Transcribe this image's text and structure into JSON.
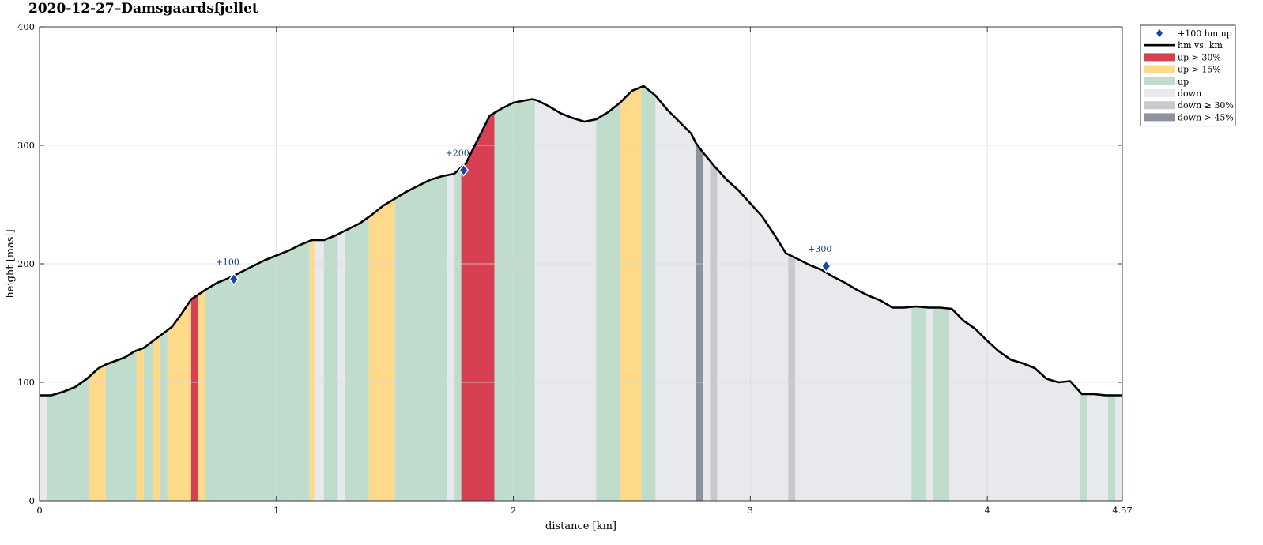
{
  "title": "2020-12-27–Damsgaardsfjellet",
  "chart_data": {
    "type": "area",
    "title": "2020-12-27–Damsgaardsfjellet",
    "xlabel": "distance [km]",
    "ylabel": "height [masl]",
    "xlim": [
      0,
      4.57
    ],
    "ylim": [
      0,
      400
    ],
    "xticks": [
      "0",
      "1",
      "2",
      "3",
      "4",
      "4.57"
    ],
    "xtick_values": [
      0,
      1,
      2,
      3,
      4,
      4.57
    ],
    "yticks": [
      "0",
      "100",
      "200",
      "300",
      "400"
    ],
    "ytick_values": [
      0,
      100,
      200,
      300,
      400
    ],
    "grid": true,
    "legend_position": "outside-right-top",
    "legend": [
      {
        "label": "+100 hm up",
        "kind": "marker",
        "color": "#1548a6"
      },
      {
        "label": "hm vs. km",
        "kind": "line",
        "color": "#000000"
      },
      {
        "label": "up > 30%",
        "kind": "patch",
        "color": "#d73f52"
      },
      {
        "label": "up > 15%",
        "kind": "patch",
        "color": "#fdd98a"
      },
      {
        "label": "up",
        "kind": "patch",
        "color": "#c0dccd"
      },
      {
        "label": "down",
        "kind": "patch",
        "color": "#e8e9ed"
      },
      {
        "label": "down ≥ 30%",
        "kind": "patch",
        "color": "#c7c9cf"
      },
      {
        "label": "down > 45%",
        "kind": "patch",
        "color": "#8c939e"
      }
    ],
    "profile": {
      "x": [
        0,
        0.05,
        0.1,
        0.15,
        0.2,
        0.25,
        0.28,
        0.32,
        0.36,
        0.4,
        0.44,
        0.48,
        0.52,
        0.56,
        0.6,
        0.64,
        0.67,
        0.7,
        0.75,
        0.8,
        0.85,
        0.9,
        0.95,
        1.0,
        1.05,
        1.1,
        1.15,
        1.2,
        1.25,
        1.3,
        1.35,
        1.4,
        1.45,
        1.5,
        1.55,
        1.6,
        1.65,
        1.7,
        1.75,
        1.8,
        1.85,
        1.9,
        1.95,
        2.0,
        2.05,
        2.08,
        2.1,
        2.15,
        2.2,
        2.25,
        2.3,
        2.35,
        2.4,
        2.45,
        2.5,
        2.55,
        2.6,
        2.65,
        2.7,
        2.75,
        2.77,
        2.8,
        2.85,
        2.9,
        2.95,
        3.0,
        3.05,
        3.1,
        3.15,
        3.2,
        3.25,
        3.3,
        3.35,
        3.4,
        3.45,
        3.5,
        3.55,
        3.6,
        3.65,
        3.7,
        3.75,
        3.8,
        3.85,
        3.9,
        3.95,
        4.0,
        4.05,
        4.1,
        4.15,
        4.2,
        4.25,
        4.3,
        4.35,
        4.4,
        4.45,
        4.5,
        4.57
      ],
      "y": [
        89,
        89,
        92,
        96,
        103,
        112,
        115,
        118,
        121,
        126,
        129,
        135,
        141,
        147,
        158,
        170,
        174,
        178,
        184,
        188,
        193,
        198,
        203,
        207,
        211,
        216,
        220,
        220,
        224,
        229,
        234,
        241,
        249,
        255,
        261,
        266,
        271,
        274,
        276,
        285,
        305,
        325,
        331,
        336,
        338,
        339,
        338,
        333,
        327,
        323,
        320,
        322,
        328,
        336,
        346,
        350,
        342,
        330,
        320,
        310,
        302,
        294,
        282,
        271,
        262,
        251,
        240,
        225,
        209,
        204,
        199,
        195,
        189,
        184,
        178,
        173,
        169,
        163,
        163,
        164,
        163,
        163,
        162,
        152,
        145,
        135,
        126,
        119,
        116,
        112,
        103,
        100,
        101,
        90,
        90,
        89,
        89
      ]
    },
    "segments": [
      {
        "x0": 0.0,
        "x1": 0.03,
        "class": "down"
      },
      {
        "x0": 0.03,
        "x1": 0.21,
        "class": "up"
      },
      {
        "x0": 0.21,
        "x1": 0.28,
        "class": "up > 15%"
      },
      {
        "x0": 0.28,
        "x1": 0.41,
        "class": "up"
      },
      {
        "x0": 0.41,
        "x1": 0.44,
        "class": "up > 15%"
      },
      {
        "x0": 0.44,
        "x1": 0.48,
        "class": "up"
      },
      {
        "x0": 0.48,
        "x1": 0.51,
        "class": "up > 15%"
      },
      {
        "x0": 0.51,
        "x1": 0.54,
        "class": "up"
      },
      {
        "x0": 0.54,
        "x1": 0.64,
        "class": "up > 15%"
      },
      {
        "x0": 0.64,
        "x1": 0.67,
        "class": "up > 30%"
      },
      {
        "x0": 0.67,
        "x1": 0.7,
        "class": "up > 15%"
      },
      {
        "x0": 0.7,
        "x1": 1.14,
        "class": "up"
      },
      {
        "x0": 1.14,
        "x1": 1.16,
        "class": "up > 15%"
      },
      {
        "x0": 1.16,
        "x1": 1.2,
        "class": "down"
      },
      {
        "x0": 1.2,
        "x1": 1.26,
        "class": "up"
      },
      {
        "x0": 1.26,
        "x1": 1.29,
        "class": "down"
      },
      {
        "x0": 1.29,
        "x1": 1.39,
        "class": "up"
      },
      {
        "x0": 1.39,
        "x1": 1.5,
        "class": "up > 15%"
      },
      {
        "x0": 1.5,
        "x1": 1.72,
        "class": "up"
      },
      {
        "x0": 1.72,
        "x1": 1.75,
        "class": "down"
      },
      {
        "x0": 1.75,
        "x1": 1.78,
        "class": "up"
      },
      {
        "x0": 1.78,
        "x1": 1.92,
        "class": "up > 30%"
      },
      {
        "x0": 1.92,
        "x1": 2.09,
        "class": "up"
      },
      {
        "x0": 2.09,
        "x1": 2.35,
        "class": "down"
      },
      {
        "x0": 2.35,
        "x1": 2.45,
        "class": "up"
      },
      {
        "x0": 2.45,
        "x1": 2.54,
        "class": "up > 15%"
      },
      {
        "x0": 2.54,
        "x1": 2.6,
        "class": "up"
      },
      {
        "x0": 2.6,
        "x1": 2.77,
        "class": "down"
      },
      {
        "x0": 2.77,
        "x1": 2.8,
        "class": "down > 45%"
      },
      {
        "x0": 2.8,
        "x1": 2.83,
        "class": "down"
      },
      {
        "x0": 2.83,
        "x1": 2.86,
        "class": "down ≥ 30%"
      },
      {
        "x0": 2.86,
        "x1": 3.16,
        "class": "down"
      },
      {
        "x0": 3.16,
        "x1": 3.19,
        "class": "down ≥ 30%"
      },
      {
        "x0": 3.19,
        "x1": 3.68,
        "class": "down"
      },
      {
        "x0": 3.68,
        "x1": 3.74,
        "class": "up"
      },
      {
        "x0": 3.74,
        "x1": 3.77,
        "class": "down"
      },
      {
        "x0": 3.77,
        "x1": 3.84,
        "class": "up"
      },
      {
        "x0": 3.84,
        "x1": 4.39,
        "class": "down"
      },
      {
        "x0": 4.39,
        "x1": 4.42,
        "class": "up"
      },
      {
        "x0": 4.42,
        "x1": 4.51,
        "class": "down"
      },
      {
        "x0": 4.51,
        "x1": 4.54,
        "class": "up"
      },
      {
        "x0": 4.54,
        "x1": 4.57,
        "class": "down"
      }
    ],
    "markers": [
      {
        "label": "+100",
        "x": 0.82,
        "y": 187
      },
      {
        "label": "+200",
        "x": 1.79,
        "y": 279
      },
      {
        "label": "+300",
        "x": 3.32,
        "y": 198
      }
    ]
  }
}
